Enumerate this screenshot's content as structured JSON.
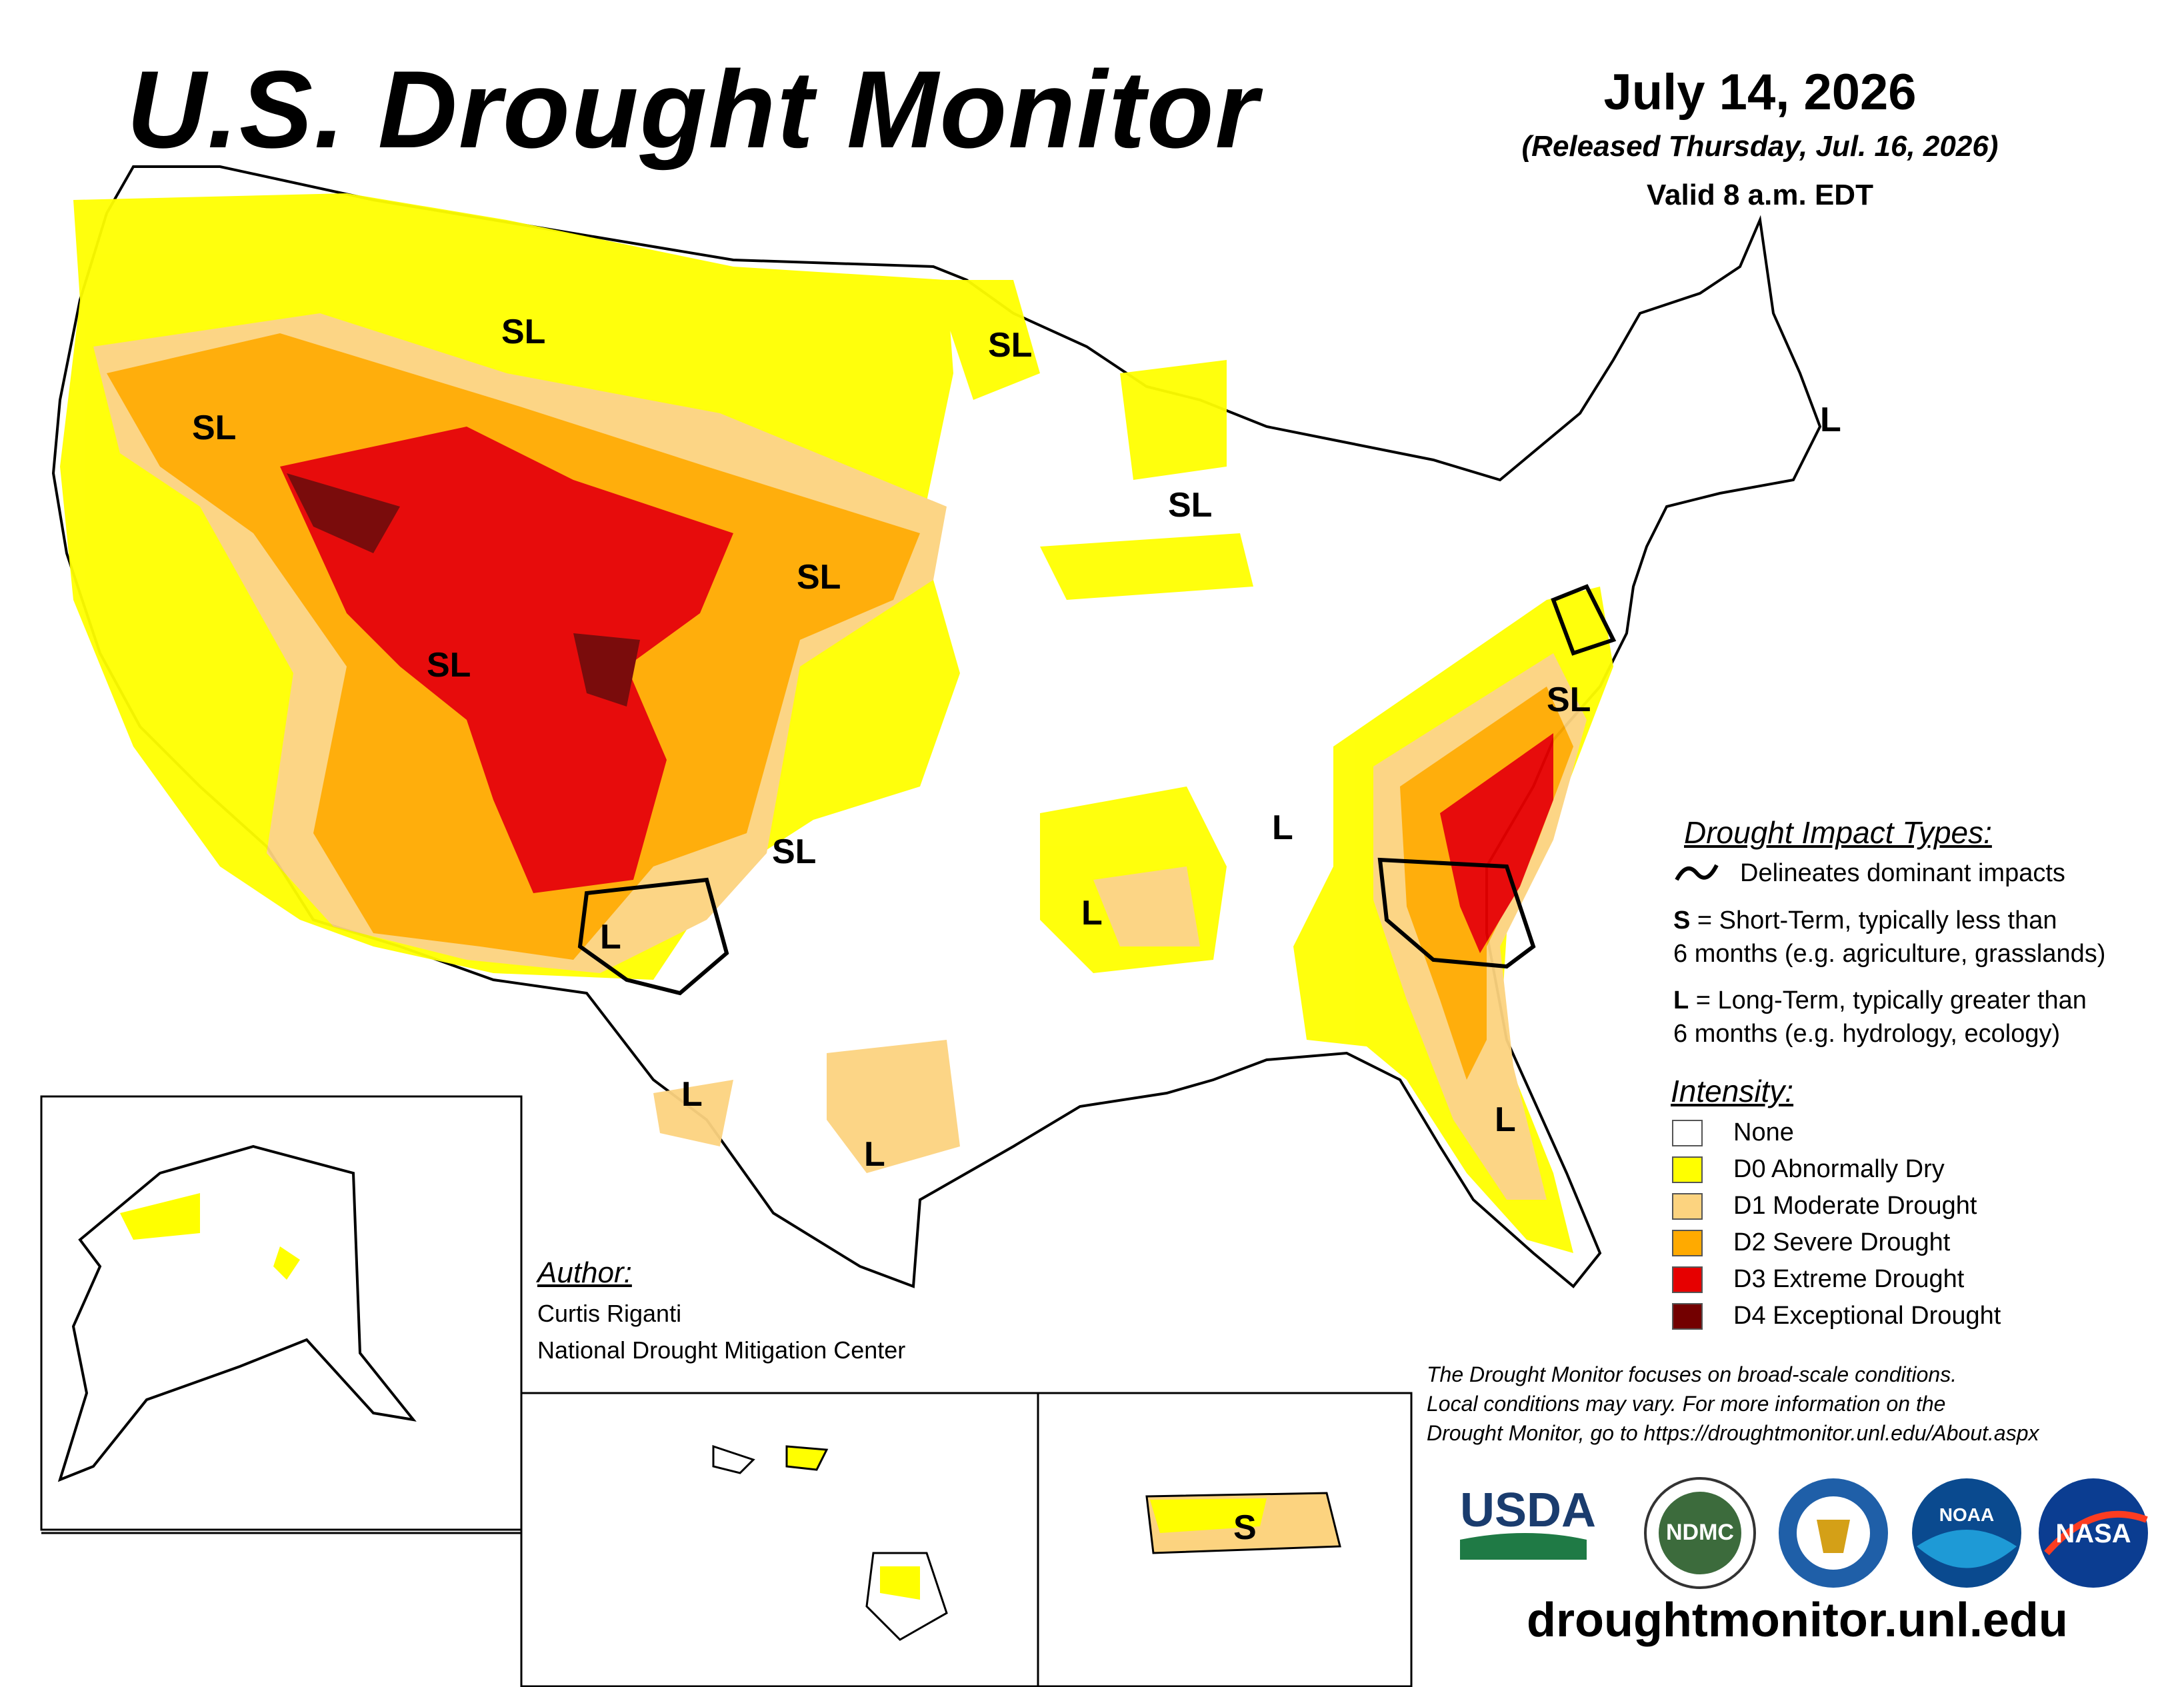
{
  "header": {
    "title": "U.S. Drought Monitor",
    "date": "July 14, 2026",
    "released": "(Released Thursday, Jul. 16, 2026)",
    "valid": "Valid 8 a.m. EDT"
  },
  "map_labels": [
    "SL",
    "SL",
    "SL",
    "SL",
    "SL",
    "SL",
    "SL",
    "SL",
    "L",
    "L",
    "L",
    "L",
    "L",
    "L",
    "L",
    "S"
  ],
  "impact_legend": {
    "heading": "Drought Impact Types:",
    "delineates": "Delineates dominant impacts",
    "s_key": "S",
    "s_text": " = Short-Term, typically less than",
    "s_text2": "6 months (e.g. agriculture, grasslands)",
    "l_key": "L",
    "l_text": " = Long-Term, typically greater than",
    "l_text2": "6 months (e.g. hydrology, ecology)"
  },
  "intensity_legend": {
    "heading": "Intensity:",
    "items": [
      {
        "label": "None",
        "color": "#ffffff"
      },
      {
        "label": "D0 Abnormally Dry",
        "color": "#ffff00"
      },
      {
        "label": "D1 Moderate Drought",
        "color": "#fcd37f"
      },
      {
        "label": "D2 Severe Drought",
        "color": "#ffaa00"
      },
      {
        "label": "D3 Extreme Drought",
        "color": "#e60000"
      },
      {
        "label": "D4 Exceptional Drought",
        "color": "#730000"
      }
    ]
  },
  "author": {
    "heading": "Author:",
    "name": "Curtis Riganti",
    "org": "National Drought Mitigation Center"
  },
  "disclaimer": {
    "line1": "The Drought Monitor focuses on broad-scale conditions.",
    "line2": "Local conditions may vary. For more information on the",
    "line3": "Drought Monitor, go to https://droughtmonitor.unl.edu/About.aspx"
  },
  "logos": {
    "usda": "USDA",
    "ndmc": "NDMC",
    "noaa": "NOAA",
    "nasa": "NASA"
  },
  "site": "droughtmonitor.unl.edu"
}
